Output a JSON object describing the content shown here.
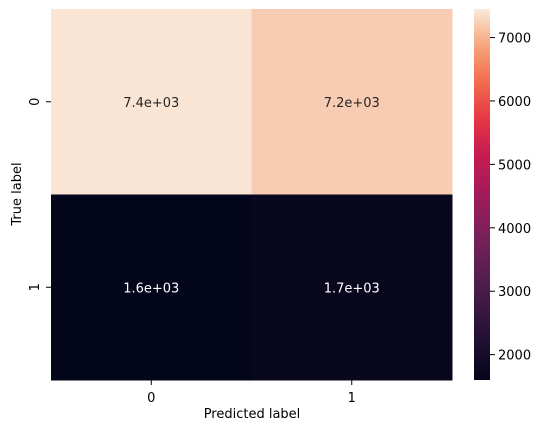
{
  "chart_data": {
    "type": "heatmap",
    "title": "",
    "xlabel": "Predicted label",
    "ylabel": "True label",
    "x_categories": [
      "0",
      "1"
    ],
    "y_categories": [
      "0",
      "1"
    ],
    "values": [
      [
        7400,
        7200
      ],
      [
        1600,
        1700
      ]
    ],
    "annotations": [
      [
        "7.4e+03",
        "7.2e+03"
      ],
      [
        "1.6e+03",
        "1.7e+03"
      ]
    ],
    "colormap": "rocket",
    "colorbar": {
      "range": [
        1600,
        7450
      ],
      "ticks": [
        2000,
        3000,
        4000,
        5000,
        6000,
        7000
      ],
      "tick_labels": [
        "2000",
        "3000",
        "4000",
        "5000",
        "6000",
        "7000"
      ]
    },
    "grid": false
  }
}
